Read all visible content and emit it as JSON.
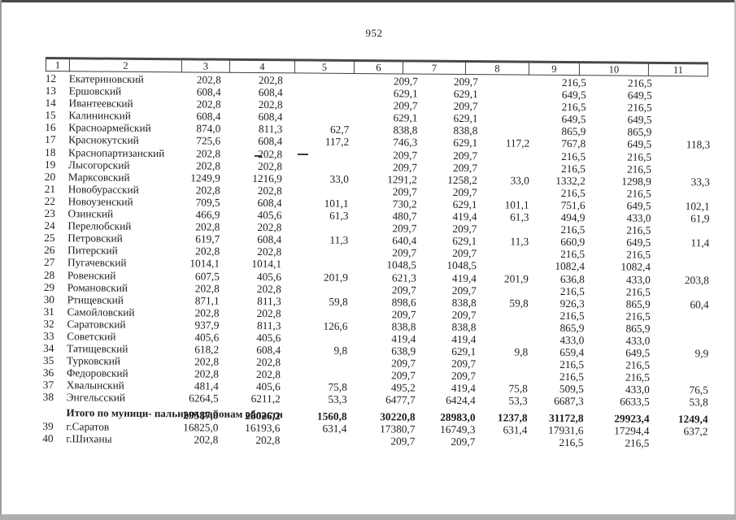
{
  "page_number": "952",
  "table": {
    "columns": [
      "1",
      "2",
      "3",
      "4",
      "5",
      "6",
      "7",
      "8",
      "9",
      "10",
      "11"
    ],
    "rows": [
      {
        "n": "12",
        "name": "Екатериновский",
        "v": [
          "202,8",
          "202,8",
          "",
          "209,7",
          "209,7",
          "",
          "216,5",
          "216,5",
          ""
        ]
      },
      {
        "n": "13",
        "name": "Ершовский",
        "v": [
          "608,4",
          "608,4",
          "",
          "629,1",
          "629,1",
          "",
          "649,5",
          "649,5",
          ""
        ]
      },
      {
        "n": "14",
        "name": "Ивантеевский",
        "v": [
          "202,8",
          "202,8",
          "",
          "209,7",
          "209,7",
          "",
          "216,5",
          "216,5",
          ""
        ]
      },
      {
        "n": "15",
        "name": "Калининский",
        "v": [
          "608,4",
          "608,4",
          "",
          "629,1",
          "629,1",
          "",
          "649,5",
          "649,5",
          ""
        ]
      },
      {
        "n": "16",
        "name": "Красноармейский",
        "v": [
          "874,0",
          "811,3",
          "62,7",
          "838,8",
          "838,8",
          "",
          "865,9",
          "865,9",
          ""
        ]
      },
      {
        "n": "17",
        "name": "Краснокутский",
        "v": [
          "725,6",
          "608,4",
          "117,2",
          "746,3",
          "629,1",
          "117,2",
          "767,8",
          "649,5",
          "118,3"
        ]
      },
      {
        "n": "18",
        "name": "Краснопартизанский",
        "v": [
          "202,8",
          "202,8",
          "",
          "209,7",
          "209,7",
          "",
          "216,5",
          "216,5",
          ""
        ]
      },
      {
        "n": "19",
        "name": "Лысогорский",
        "v": [
          "202,8",
          "202,8",
          "",
          "209,7",
          "209,7",
          "",
          "216,5",
          "216,5",
          ""
        ]
      },
      {
        "n": "20",
        "name": "Марксовский",
        "v": [
          "1249,9",
          "1216,9",
          "33,0",
          "1291,2",
          "1258,2",
          "33,0",
          "1332,2",
          "1298,9",
          "33,3"
        ]
      },
      {
        "n": "21",
        "name": "Новобурасский",
        "v": [
          "202,8",
          "202,8",
          "",
          "209,7",
          "209,7",
          "",
          "216,5",
          "216,5",
          ""
        ]
      },
      {
        "n": "22",
        "name": "Новоузенский",
        "v": [
          "709,5",
          "608,4",
          "101,1",
          "730,2",
          "629,1",
          "101,1",
          "751,6",
          "649,5",
          "102,1"
        ]
      },
      {
        "n": "23",
        "name": "Озинский",
        "v": [
          "466,9",
          "405,6",
          "61,3",
          "480,7",
          "419,4",
          "61,3",
          "494,9",
          "433,0",
          "61,9"
        ]
      },
      {
        "n": "24",
        "name": "Перелюбский",
        "v": [
          "202,8",
          "202,8",
          "",
          "209,7",
          "209,7",
          "",
          "216,5",
          "216,5",
          ""
        ]
      },
      {
        "n": "25",
        "name": "Петровский",
        "v": [
          "619,7",
          "608,4",
          "11,3",
          "640,4",
          "629,1",
          "11,3",
          "660,9",
          "649,5",
          "11,4"
        ]
      },
      {
        "n": "26",
        "name": "Питерский",
        "v": [
          "202,8",
          "202,8",
          "",
          "209,7",
          "209,7",
          "",
          "216,5",
          "216,5",
          ""
        ]
      },
      {
        "n": "27",
        "name": "Пугачевский",
        "v": [
          "1014,1",
          "1014,1",
          "",
          "1048,5",
          "1048,5",
          "",
          "1082,4",
          "1082,4",
          ""
        ]
      },
      {
        "n": "28",
        "name": "Ровенский",
        "v": [
          "607,5",
          "405,6",
          "201,9",
          "621,3",
          "419,4",
          "201,9",
          "636,8",
          "433,0",
          "203,8"
        ]
      },
      {
        "n": "29",
        "name": "Романовский",
        "v": [
          "202,8",
          "202,8",
          "",
          "209,7",
          "209,7",
          "",
          "216,5",
          "216,5",
          ""
        ]
      },
      {
        "n": "30",
        "name": "Ртищевский",
        "v": [
          "871,1",
          "811,3",
          "59,8",
          "898,6",
          "838,8",
          "59,8",
          "926,3",
          "865,9",
          "60,4"
        ]
      },
      {
        "n": "31",
        "name": "Самойловский",
        "v": [
          "202,8",
          "202,8",
          "",
          "209,7",
          "209,7",
          "",
          "216,5",
          "216,5",
          ""
        ]
      },
      {
        "n": "32",
        "name": "Саратовский",
        "v": [
          "937,9",
          "811,3",
          "126,6",
          "838,8",
          "838,8",
          "",
          "865,9",
          "865,9",
          ""
        ]
      },
      {
        "n": "33",
        "name": "Советский",
        "v": [
          "405,6",
          "405,6",
          "",
          "419,4",
          "419,4",
          "",
          "433,0",
          "433,0",
          ""
        ]
      },
      {
        "n": "34",
        "name": "Татищевский",
        "v": [
          "618,2",
          "608,4",
          "9,8",
          "638,9",
          "629,1",
          "9,8",
          "659,4",
          "649,5",
          "9,9"
        ]
      },
      {
        "n": "35",
        "name": "Турковский",
        "v": [
          "202,8",
          "202,8",
          "",
          "209,7",
          "209,7",
          "",
          "216,5",
          "216,5",
          ""
        ]
      },
      {
        "n": "36",
        "name": "Федоровский",
        "v": [
          "202,8",
          "202,8",
          "",
          "209,7",
          "209,7",
          "",
          "216,5",
          "216,5",
          ""
        ]
      },
      {
        "n": "37",
        "name": "Хвалынский",
        "v": [
          "481,4",
          "405,6",
          "75,8",
          "495,2",
          "419,4",
          "75,8",
          "509,5",
          "433,0",
          "76,5"
        ]
      },
      {
        "n": "38",
        "name": "Энгельсский",
        "v": [
          "6264,5",
          "6211,2",
          "53,3",
          "6477,7",
          "6424,4",
          "53,3",
          "6687,3",
          "6633,5",
          "53,8"
        ]
      },
      {
        "n": "",
        "name": "Итого по муници-\nпальным районам\nобласти",
        "v": [
          "29587,0",
          "28026,2",
          "1560,8",
          "30220,8",
          "28983,0",
          "1237,8",
          "31172,8",
          "29923,4",
          "1249,4"
        ],
        "bold": true
      },
      {
        "n": "39",
        "name": "г.Саратов",
        "v": [
          "16825,0",
          "16193,6",
          "631,4",
          "17380,7",
          "16749,3",
          "631,4",
          "17931,6",
          "17294,4",
          "637,2"
        ]
      },
      {
        "n": "40",
        "name": "г.Шиханы",
        "v": [
          "202,8",
          "202,8",
          "",
          "209,7",
          "209,7",
          "",
          "216,5",
          "216,5",
          ""
        ]
      }
    ]
  }
}
